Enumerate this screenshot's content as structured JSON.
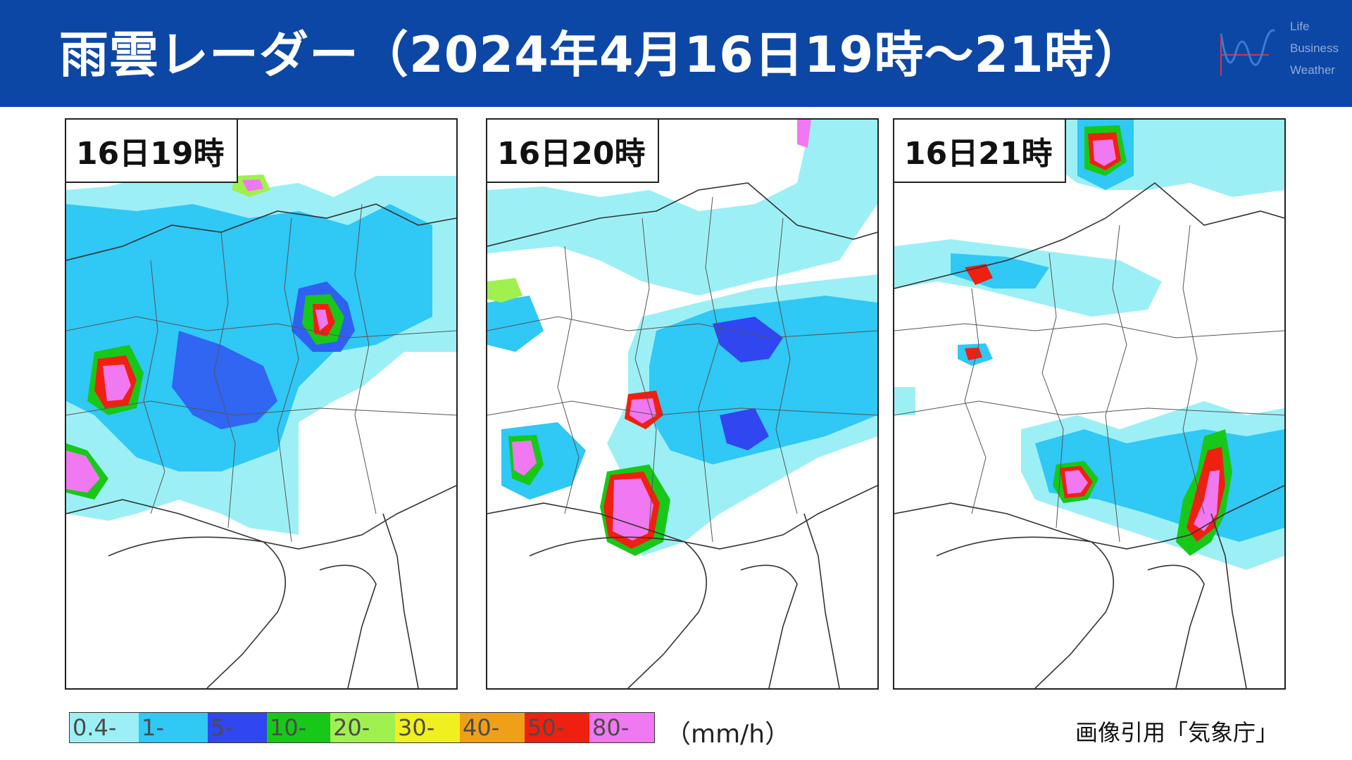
{
  "header": {
    "title": "雨雲レーダー（2024年4月16日19時～21時）",
    "logo_lines": [
      "Life",
      "Business",
      "Weather"
    ],
    "background": "#0d47a6"
  },
  "panels": [
    {
      "label": "16日19時"
    },
    {
      "label": "16日20時"
    },
    {
      "label": "16日21時"
    }
  ],
  "legend": {
    "items": [
      {
        "label": "0.4-",
        "color": "#9cf0f5"
      },
      {
        "label": "1-",
        "color": "#30c8f5"
      },
      {
        "label": "5-",
        "color": "#3046f0"
      },
      {
        "label": "10-",
        "color": "#18c818"
      },
      {
        "label": "20-",
        "color": "#a0f050"
      },
      {
        "label": "30-",
        "color": "#f0f020"
      },
      {
        "label": "40-",
        "color": "#f0a018"
      },
      {
        "label": "50-",
        "color": "#f02010"
      },
      {
        "label": "80-",
        "color": "#f078f0"
      }
    ],
    "unit": "（mm/h）"
  },
  "credit": "画像引用「気象庁」"
}
